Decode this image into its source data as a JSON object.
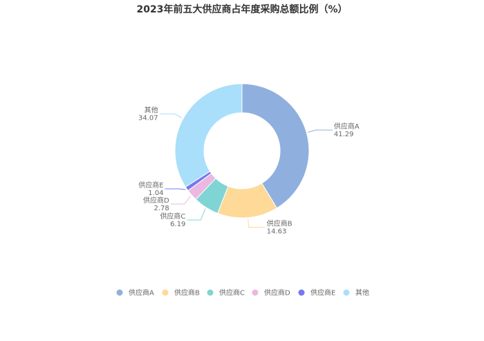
{
  "chart_data": {
    "type": "pie",
    "donut": true,
    "title": "2023年前五大供应商占年度采购总额比例（%）",
    "slices": [
      {
        "name": "供应商A",
        "value": 41.29,
        "color": "#8fb0de"
      },
      {
        "name": "供应商B",
        "value": 14.63,
        "color": "#fed998"
      },
      {
        "name": "供应商C",
        "value": 6.19,
        "color": "#80d5d4"
      },
      {
        "name": "供应商D",
        "value": 2.78,
        "color": "#eab8e0"
      },
      {
        "name": "供应商E",
        "value": 1.04,
        "color": "#7379ef"
      },
      {
        "name": "其他",
        "value": 34.07,
        "color": "#a9dffa"
      }
    ],
    "legend_position": "bottom"
  }
}
